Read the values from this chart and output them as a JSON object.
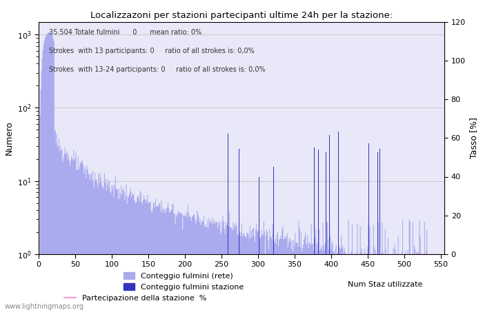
{
  "title": "Localizzazoni per stazioni partecipanti ultime 24h per la stazione:",
  "ylabel_left": "Numero",
  "ylabel_right": "Tasso [%]",
  "annotation_lines": [
    "35.504 Totale fulmini      0      mean ratio: 0%",
    "Strokes  with 13 participants: 0     ratio of all strokes is: 0,0%",
    "Strokes  with 13-24 participants: 0     ratio of all strokes is: 0,0%"
  ],
  "watermark": "www.lightningmaps.org",
  "legend_labels": {
    "net": "Conteggio fulmini (rete)",
    "station": "Conteggio fulmini stazione",
    "num_staz": "Num Staz utilizzate",
    "participation": "Partecipazione della stazione  %"
  },
  "xlim": [
    0,
    555
  ],
  "ylim_right": [
    0,
    120
  ],
  "xticks": [
    0,
    50,
    100,
    150,
    200,
    250,
    300,
    350,
    400,
    450,
    500,
    550
  ],
  "yticks_right": [
    0,
    20,
    40,
    60,
    80,
    100,
    120
  ],
  "background_color": "#ffffff",
  "plot_bg_color": "#e8e8f8",
  "fill_color": "#aaaaee",
  "station_bar_color": "#3333bb",
  "participation_color": "#ff99dd",
  "grid_color": "#cccccc",
  "figsize": [
    7.0,
    4.5
  ],
  "dpi": 100
}
